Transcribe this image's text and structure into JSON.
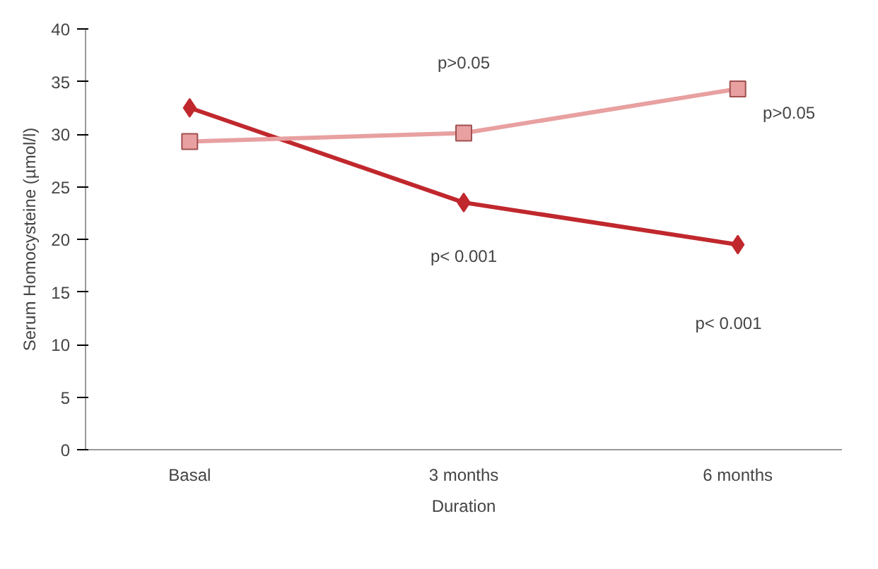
{
  "chart_data": {
    "type": "line",
    "xlabel": "Duration",
    "ylabel": "Serum Homocysteine (µmol/l)",
    "categories": [
      "Basal",
      "3 months",
      "6 months"
    ],
    "series": [
      {
        "color": "#c0282d",
        "values": [
          32.5,
          23.5,
          19.5
        ],
        "marker": "diamond"
      },
      {
        "color": "#e8a0a0",
        "values": [
          29.3,
          30.1,
          34.3
        ],
        "marker": "square"
      }
    ],
    "ylim": [
      0,
      40
    ],
    "yticks": [
      0,
      5,
      10,
      15,
      20,
      25,
      30,
      35,
      40
    ],
    "grid": false,
    "annotations": [
      "p>0.05",
      "p>0.05",
      "p< 0.001",
      "p< 0.001"
    ]
  }
}
